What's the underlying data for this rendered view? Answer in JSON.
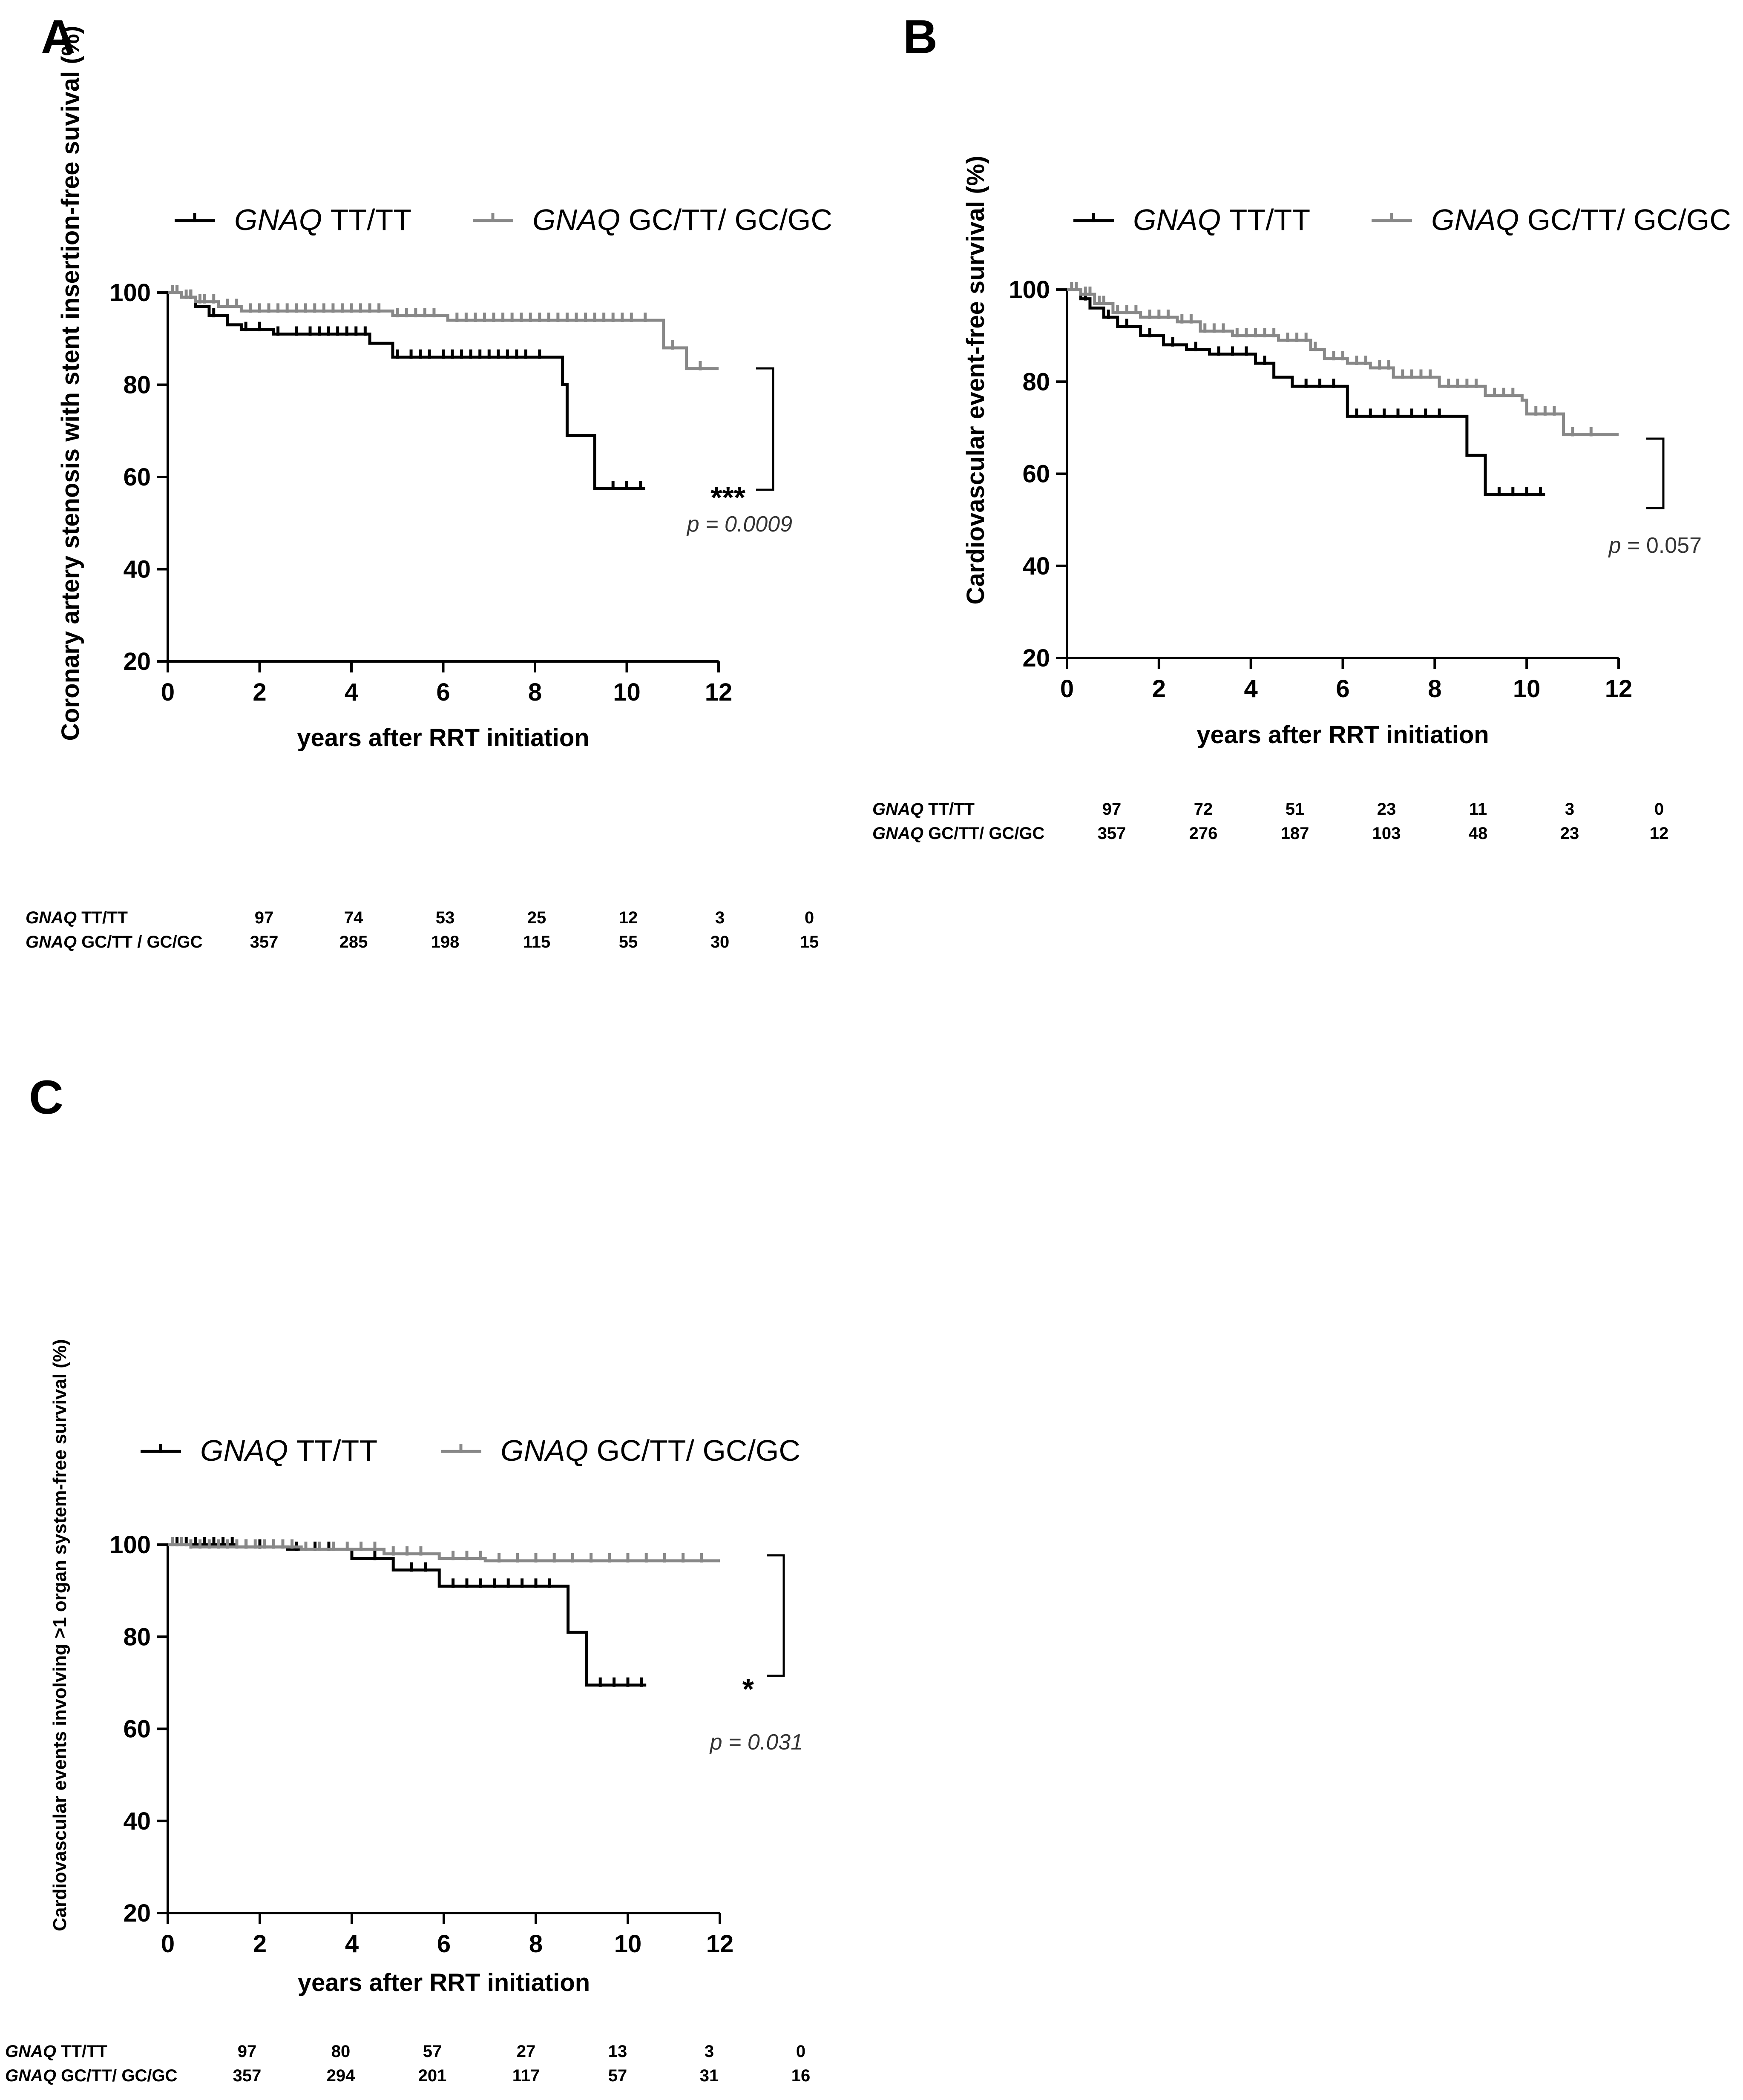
{
  "chart_data": [
    {
      "panel": "A",
      "type": "line",
      "ylabel": "Coronary artery stenosis with stent insertion-free suvival (%)",
      "xlabel": "years after RRT initiation",
      "xlim": [
        0,
        12
      ],
      "ylim": [
        20,
        100
      ],
      "xticks": [
        0,
        2,
        4,
        6,
        8,
        10,
        12
      ],
      "yticks": [
        20,
        40,
        60,
        80,
        100
      ],
      "legend": {
        "placement": "top",
        "entries": [
          {
            "gene": "GNAQ",
            "genotype": "TT/TT"
          },
          {
            "gene": "GNAQ",
            "genotype": "GC/TT/ GC/GC"
          }
        ]
      },
      "series": [
        {
          "color": "#000000",
          "steps": [
            [
              0,
              100
            ],
            [
              0.3,
              99
            ],
            [
              0.6,
              97
            ],
            [
              0.9,
              95
            ],
            [
              1.3,
              93
            ],
            [
              1.6,
              92
            ],
            [
              2.3,
              91
            ],
            [
              4.4,
              89
            ],
            [
              4.9,
              86
            ],
            [
              8.6,
              80
            ],
            [
              8.7,
              69
            ],
            [
              9.3,
              57.5
            ],
            [
              10.4,
              57.5
            ]
          ],
          "censored": [
            0.2,
            0.5,
            1.0,
            1.7,
            2.0,
            2.4,
            2.8,
            3.1,
            3.3,
            3.5,
            3.7,
            3.9,
            4.1,
            4.3,
            5.0,
            5.3,
            5.5,
            5.7,
            6.0,
            6.2,
            6.4,
            6.6,
            6.8,
            7.0,
            7.2,
            7.4,
            7.6,
            7.8,
            8.1,
            9.7,
            10.0,
            10.3
          ]
        },
        {
          "color": "#888888",
          "steps": [
            [
              0,
              100
            ],
            [
              0.3,
              99
            ],
            [
              0.6,
              98
            ],
            [
              1.1,
              97
            ],
            [
              1.6,
              96
            ],
            [
              4.9,
              95
            ],
            [
              6.1,
              94
            ],
            [
              10.8,
              88
            ],
            [
              11.3,
              83.5
            ],
            [
              12,
              83.5
            ]
          ],
          "censored": [
            0.1,
            0.2,
            0.4,
            0.5,
            0.7,
            0.8,
            1.0,
            1.3,
            1.5,
            1.8,
            2.0,
            2.2,
            2.4,
            2.6,
            2.8,
            3.0,
            3.2,
            3.4,
            3.6,
            3.8,
            4.0,
            4.2,
            4.4,
            4.6,
            5.0,
            5.2,
            5.4,
            5.6,
            5.8,
            6.3,
            6.5,
            6.7,
            6.9,
            7.1,
            7.3,
            7.5,
            7.7,
            7.9,
            8.1,
            8.3,
            8.5,
            8.7,
            8.9,
            9.1,
            9.3,
            9.5,
            9.7,
            9.9,
            10.1,
            10.4,
            11.0,
            11.6
          ]
        }
      ],
      "significance": "***",
      "p_value": {
        "label": "p",
        "value": "= 0.0009",
        "italic": true
      },
      "risk_table": {
        "rows": [
          {
            "gene": "GNAQ",
            "genotype": "TT/TT",
            "counts": [
              97,
              74,
              53,
              25,
              12,
              3,
              0
            ]
          },
          {
            "gene": "GNAQ",
            "genotype": "GC/TT / GC/GC",
            "counts": [
              357,
              285,
              198,
              115,
              55,
              30,
              15
            ]
          }
        ]
      }
    },
    {
      "panel": "B",
      "type": "line",
      "ylabel": "Cardiovascular event-free survival (%)",
      "xlabel": "years after RRT initiation",
      "xlim": [
        0,
        12
      ],
      "ylim": [
        20,
        100
      ],
      "xticks": [
        0,
        2,
        4,
        6,
        8,
        10,
        12
      ],
      "yticks": [
        20,
        40,
        60,
        80,
        100
      ],
      "legend": {
        "placement": "top",
        "entries": [
          {
            "gene": "GNAQ",
            "genotype": "TT/TT"
          },
          {
            "gene": "GNAQ",
            "genotype": "GC/TT/ GC/GC"
          }
        ]
      },
      "series": [
        {
          "color": "#000000",
          "steps": [
            [
              0,
              100
            ],
            [
              0.3,
              98
            ],
            [
              0.5,
              96
            ],
            [
              0.8,
              94
            ],
            [
              1.1,
              92
            ],
            [
              1.6,
              90
            ],
            [
              2.1,
              88
            ],
            [
              2.6,
              87
            ],
            [
              3.1,
              86
            ],
            [
              4.1,
              84
            ],
            [
              4.5,
              81
            ],
            [
              4.9,
              79
            ],
            [
              6.1,
              72.5
            ],
            [
              8.7,
              64
            ],
            [
              9.1,
              55.5
            ],
            [
              10.4,
              55.5
            ]
          ],
          "censored": [
            0.4,
            0.9,
            1.3,
            1.8,
            2.3,
            2.8,
            3.3,
            3.6,
            3.9,
            4.3,
            5.2,
            5.5,
            5.8,
            6.3,
            6.6,
            6.9,
            7.2,
            7.5,
            7.8,
            8.1,
            9.4,
            9.7,
            10.0,
            10.3
          ]
        },
        {
          "color": "#888888",
          "steps": [
            [
              0,
              100
            ],
            [
              0.3,
              99
            ],
            [
              0.6,
              97
            ],
            [
              1.0,
              95
            ],
            [
              1.6,
              94
            ],
            [
              2.4,
              93
            ],
            [
              2.9,
              91
            ],
            [
              3.6,
              90
            ],
            [
              4.6,
              89
            ],
            [
              5.3,
              87
            ],
            [
              5.6,
              85
            ],
            [
              6.1,
              84
            ],
            [
              6.6,
              83
            ],
            [
              7.1,
              81
            ],
            [
              8.1,
              79
            ],
            [
              9.1,
              77
            ],
            [
              9.9,
              76
            ],
            [
              10.0,
              73
            ],
            [
              10.8,
              68.5
            ],
            [
              12,
              68.5
            ]
          ],
          "censored": [
            0.1,
            0.2,
            0.4,
            0.5,
            0.7,
            0.8,
            1.1,
            1.3,
            1.5,
            1.8,
            2.0,
            2.2,
            2.5,
            2.7,
            3.0,
            3.2,
            3.4,
            3.7,
            3.9,
            4.1,
            4.3,
            4.5,
            4.8,
            5.0,
            5.2,
            5.4,
            5.8,
            6.0,
            6.3,
            6.5,
            6.8,
            7.0,
            7.3,
            7.5,
            7.7,
            7.9,
            8.3,
            8.5,
            8.7,
            8.9,
            9.3,
            9.5,
            9.7,
            10.2,
            10.4,
            10.6,
            11.0,
            11.4
          ]
        }
      ],
      "significance": "",
      "p_value": {
        "label": "p",
        "value": "= 0.057",
        "italic": false
      },
      "risk_table": {
        "rows": [
          {
            "gene": "GNAQ",
            "genotype": "TT/TT",
            "counts": [
              97,
              72,
              51,
              23,
              11,
              3,
              0
            ]
          },
          {
            "gene": "GNAQ",
            "genotype": "GC/TT/ GC/GC",
            "counts": [
              357,
              276,
              187,
              103,
              48,
              23,
              12
            ]
          }
        ]
      }
    },
    {
      "panel": "C",
      "type": "line",
      "ylabel": "Cardiovascular events involving >1 organ system-free survival (%)",
      "xlabel": "years after RRT initiation",
      "xlim": [
        0,
        12
      ],
      "ylim": [
        20,
        100
      ],
      "xticks": [
        0,
        2,
        4,
        6,
        8,
        10,
        12
      ],
      "yticks": [
        20,
        40,
        60,
        80,
        100
      ],
      "legend": {
        "placement": "top",
        "entries": [
          {
            "gene": "GNAQ",
            "genotype": "TT/TT"
          },
          {
            "gene": "GNAQ",
            "genotype": "GC/TT/ GC/GC"
          }
        ]
      },
      "series": [
        {
          "color": "#000000",
          "steps": [
            [
              0,
              100
            ],
            [
              1.5,
              99.5
            ],
            [
              2.6,
              99
            ],
            [
              4.0,
              97
            ],
            [
              4.9,
              94.5
            ],
            [
              5.9,
              91
            ],
            [
              8.7,
              81
            ],
            [
              9.1,
              69.5
            ],
            [
              10.4,
              69.5
            ]
          ],
          "censored": [
            0.2,
            0.4,
            0.6,
            0.8,
            1.0,
            1.2,
            1.4,
            1.7,
            2.0,
            2.3,
            2.8,
            3.2,
            3.5,
            4.5,
            5.3,
            5.6,
            6.2,
            6.5,
            6.8,
            7.1,
            7.4,
            7.7,
            8.0,
            8.3,
            9.4,
            9.7,
            10.0,
            10.3
          ]
        },
        {
          "color": "#888888",
          "steps": [
            [
              0,
              100
            ],
            [
              0.5,
              99.5
            ],
            [
              2.9,
              99
            ],
            [
              4.7,
              98
            ],
            [
              5.9,
              97
            ],
            [
              6.9,
              96.5
            ],
            [
              12,
              96.5
            ]
          ],
          "censored": [
            0.1,
            0.3,
            0.5,
            0.7,
            0.9,
            1.1,
            1.3,
            1.5,
            1.7,
            1.9,
            2.1,
            2.3,
            2.5,
            2.7,
            3.0,
            3.3,
            3.6,
            3.9,
            4.2,
            4.5,
            4.9,
            5.2,
            5.5,
            6.2,
            6.5,
            6.8,
            7.2,
            7.6,
            8.0,
            8.4,
            8.8,
            9.2,
            9.6,
            10.0,
            10.4,
            10.8,
            11.2,
            11.6
          ]
        }
      ],
      "significance": "*",
      "p_value": {
        "label": "p",
        "value": "= 0.031",
        "italic": true
      },
      "risk_table": {
        "rows": [
          {
            "gene": "GNAQ",
            "genotype": "TT/TT",
            "counts": [
              97,
              80,
              57,
              27,
              13,
              3,
              0
            ]
          },
          {
            "gene": "GNAQ",
            "genotype": "GC/TT/ GC/GC",
            "counts": [
              357,
              294,
              201,
              117,
              57,
              31,
              16
            ]
          }
        ]
      }
    }
  ]
}
